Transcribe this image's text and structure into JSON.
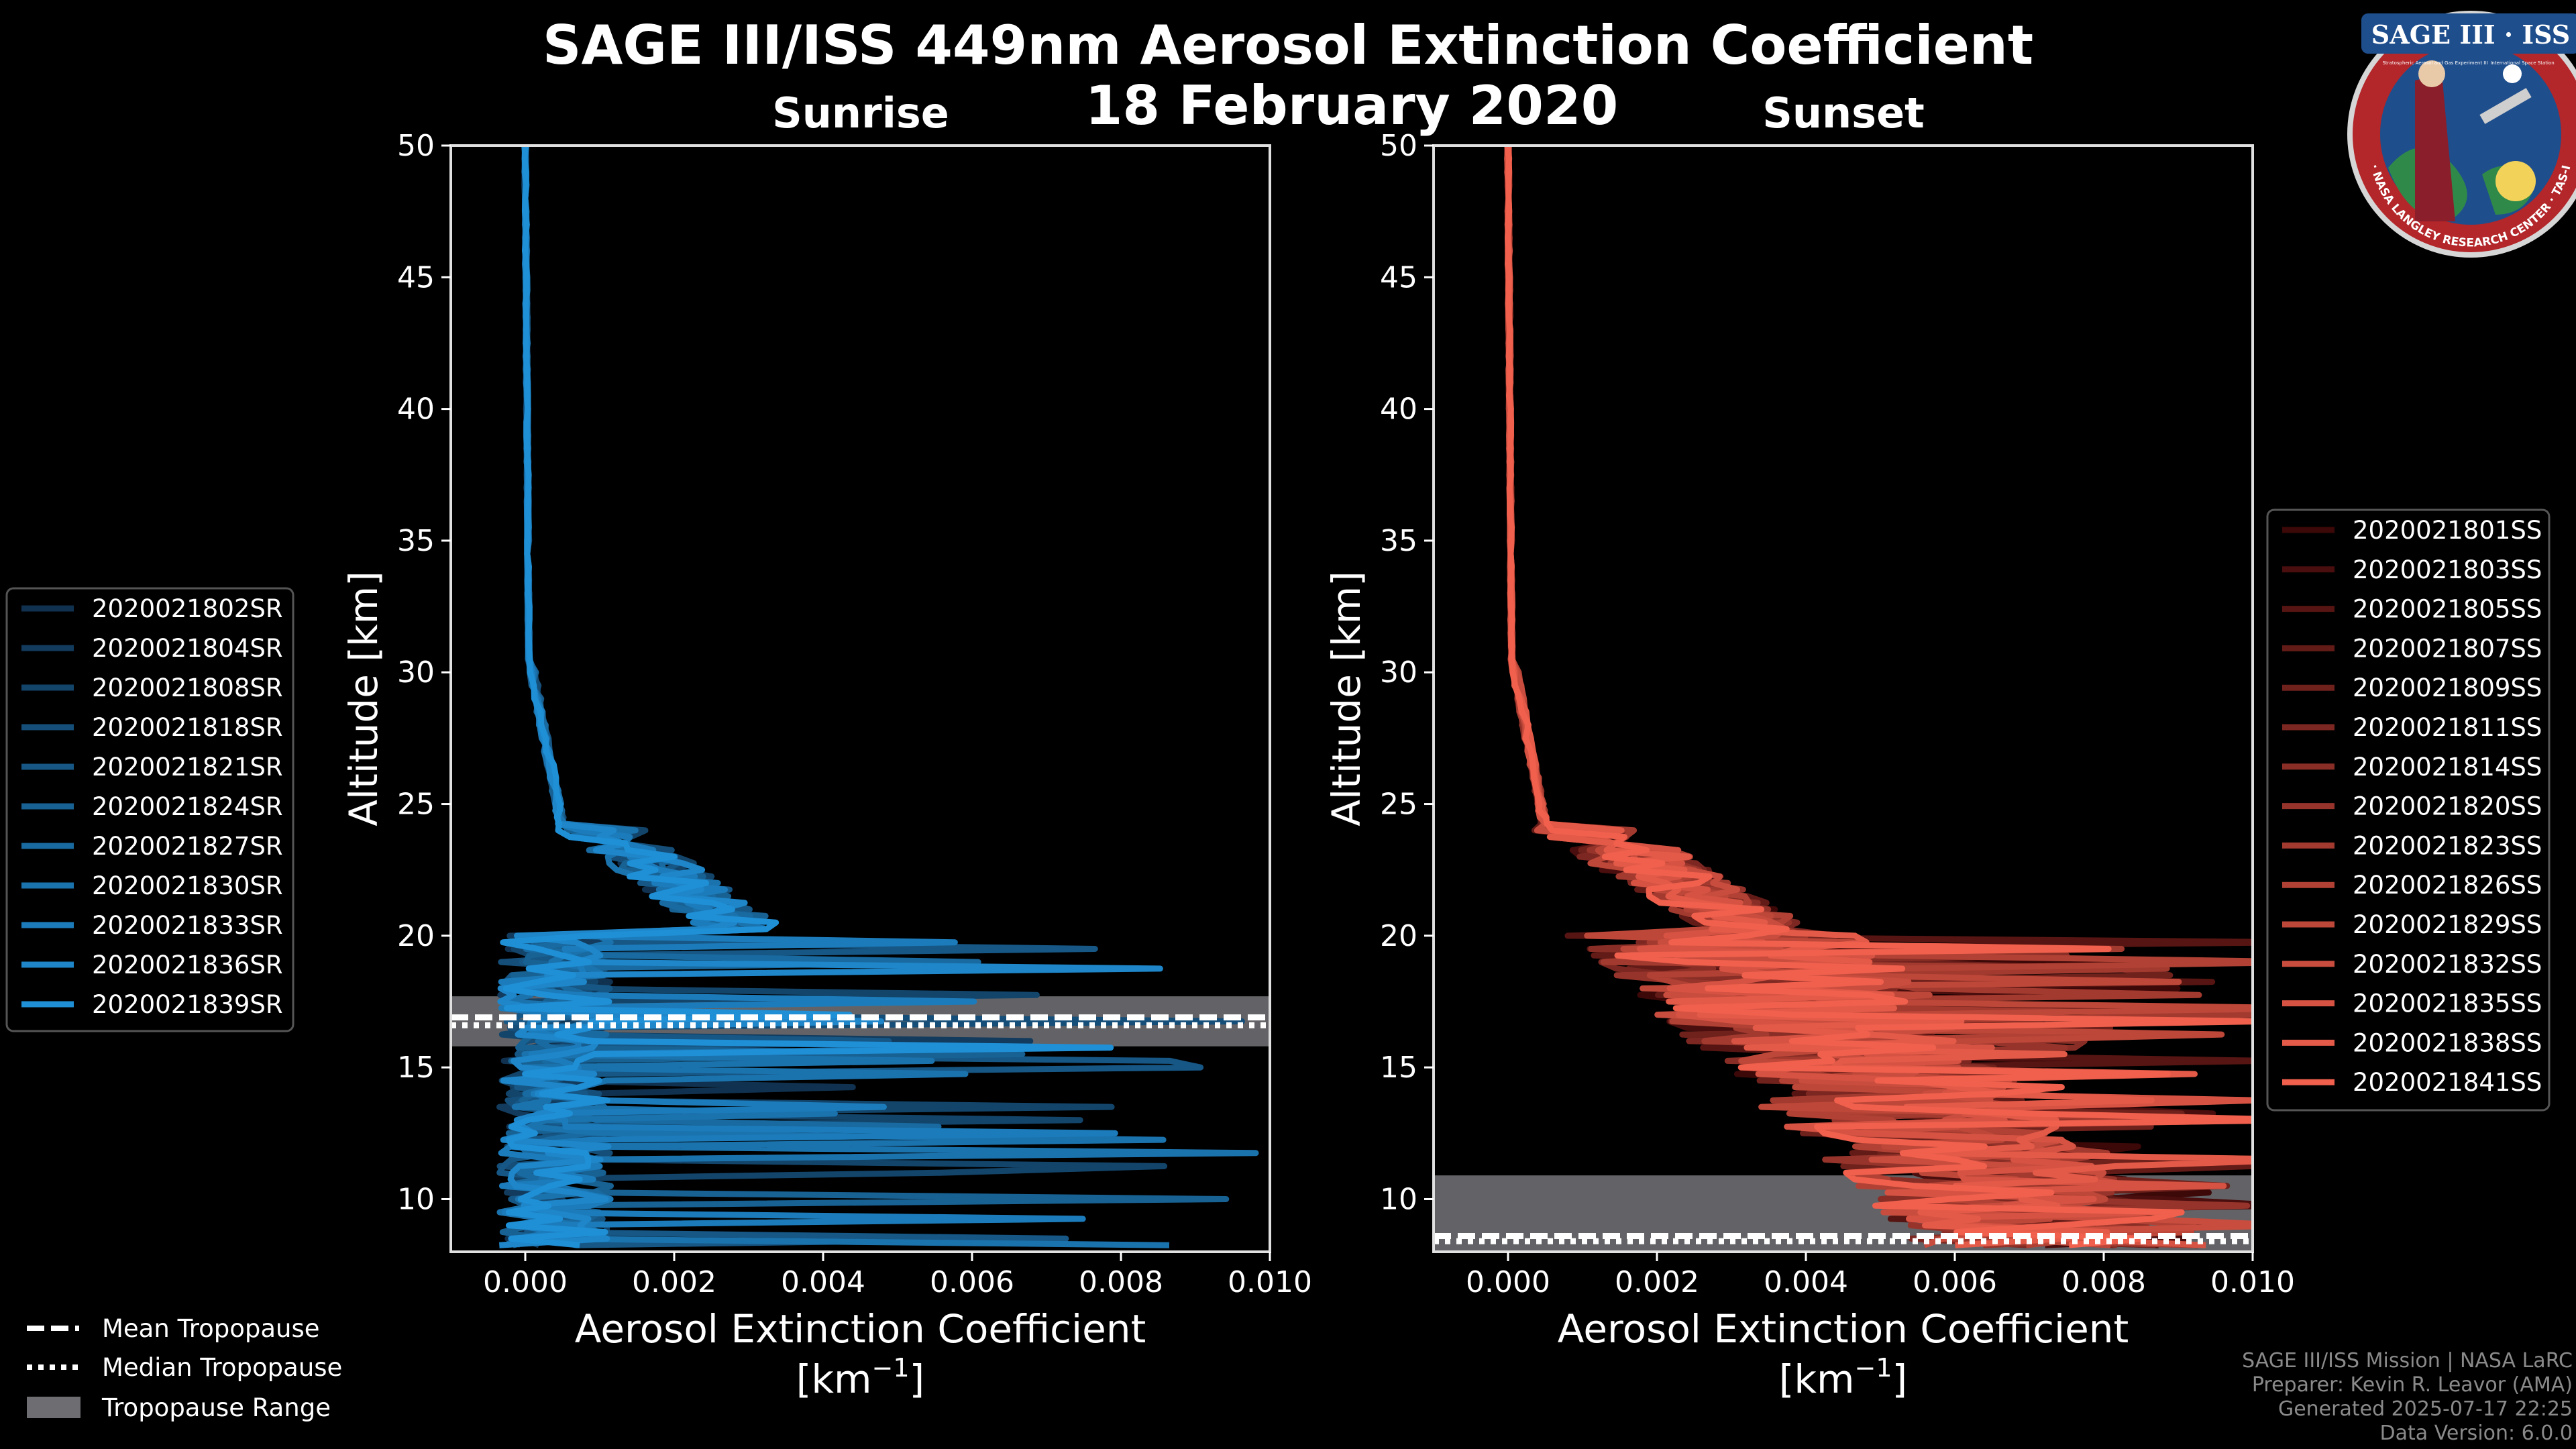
{
  "figure": {
    "title": "SAGE III/ISS 449nm Aerosol Extinction Coefficient",
    "date": "18 February 2020",
    "credits": [
      "SAGE III/ISS Mission | NASA LaRC",
      "Preparer: Kevin R. Leavor (AMA)",
      "Generated 2025-07-17 22:25",
      "Data Version: 6.0.0"
    ],
    "logo": {
      "title": "SAGE III · ISS",
      "subtitle_left": "Stratospheric Aerosol and Gas Experiment III",
      "subtitle_right": "International Space Station",
      "ring_text": "BALL · NASA LANGLEY RESEARCH CENTER · TAS-I · ESA"
    },
    "colors": {
      "sunrise": "#1f8fd6",
      "sunset": "#f0604d",
      "range": "#6e6e72"
    }
  },
  "tropopause_legend": [
    {
      "label": "Mean Tropopause",
      "style": "dashed"
    },
    {
      "label": "Median Tropopause",
      "style": "dotted"
    },
    {
      "label": "Tropopause Range",
      "style": "patch"
    }
  ],
  "chart_data": [
    {
      "type": "line",
      "subtitle": "Sunrise",
      "xlabel": "Aerosol Extinction Coefficient",
      "xunit": "[km",
      "xunit_exp": "−1",
      "xunit_close": "]",
      "ylabel": "Altitude [km]",
      "xlim": [
        -0.001,
        0.01
      ],
      "ylim": [
        8,
        50
      ],
      "xticks": [
        "0.000",
        "0.002",
        "0.004",
        "0.006",
        "0.008",
        "0.010"
      ],
      "yticks": [
        "10",
        "15",
        "20",
        "25",
        "30",
        "35",
        "40",
        "45",
        "50"
      ],
      "tropopause": {
        "mean": 16.9,
        "median": 16.6,
        "range": [
          15.8,
          17.7
        ]
      },
      "series": [
        {
          "name": "2020021802SR"
        },
        {
          "name": "2020021804SR"
        },
        {
          "name": "2020021808SR"
        },
        {
          "name": "2020021818SR"
        },
        {
          "name": "2020021821SR"
        },
        {
          "name": "2020021824SR"
        },
        {
          "name": "2020021827SR"
        },
        {
          "name": "2020021830SR"
        },
        {
          "name": "2020021833SR"
        },
        {
          "name": "2020021836SR"
        },
        {
          "name": "2020021839SR"
        }
      ]
    },
    {
      "type": "line",
      "subtitle": "Sunset",
      "xlabel": "Aerosol Extinction Coefficient",
      "xunit": "[km",
      "xunit_exp": "−1",
      "xunit_close": "]",
      "ylabel": "Altitude [km]",
      "xlim": [
        -0.001,
        0.01
      ],
      "ylim": [
        8,
        50
      ],
      "xticks": [
        "0.000",
        "0.002",
        "0.004",
        "0.006",
        "0.008",
        "0.010"
      ],
      "yticks": [
        "10",
        "15",
        "20",
        "25",
        "30",
        "35",
        "40",
        "45",
        "50"
      ],
      "tropopause": {
        "mean": 8.6,
        "median": 8.4,
        "range": [
          8.0,
          10.9
        ]
      },
      "series": [
        {
          "name": "2020021801SS"
        },
        {
          "name": "2020021803SS"
        },
        {
          "name": "2020021805SS"
        },
        {
          "name": "2020021807SS"
        },
        {
          "name": "2020021809SS"
        },
        {
          "name": "2020021811SS"
        },
        {
          "name": "2020021814SS"
        },
        {
          "name": "2020021820SS"
        },
        {
          "name": "2020021823SS"
        },
        {
          "name": "2020021826SS"
        },
        {
          "name": "2020021829SS"
        },
        {
          "name": "2020021832SS"
        },
        {
          "name": "2020021835SS"
        },
        {
          "name": "2020021838SS"
        },
        {
          "name": "2020021841SS"
        }
      ]
    }
  ]
}
